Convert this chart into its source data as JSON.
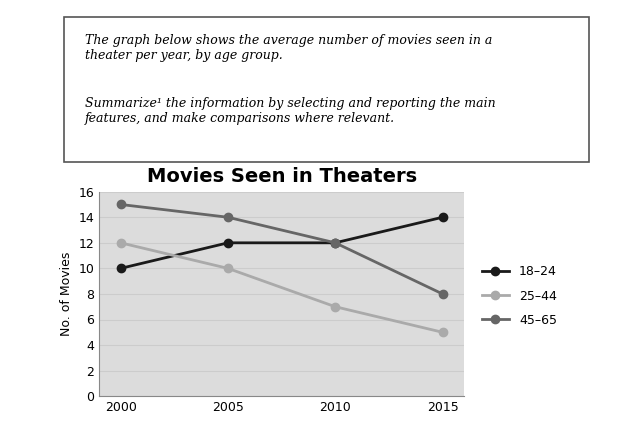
{
  "title": "Movies Seen in Theaters",
  "xlabel": "",
  "ylabel": "No. of Movies",
  "years": [
    2000,
    2005,
    2010,
    2015
  ],
  "series_order": [
    "18-24",
    "25-44",
    "45-65"
  ],
  "series": {
    "18-24": {
      "values": [
        10,
        12,
        12,
        14
      ],
      "color": "#1a1a1a",
      "linewidth": 2.0,
      "marker": "o",
      "markersize": 6,
      "label": "18–24"
    },
    "25-44": {
      "values": [
        12,
        10,
        7,
        5
      ],
      "color": "#aaaaaa",
      "linewidth": 2.0,
      "marker": "o",
      "markersize": 6,
      "label": "25–44"
    },
    "45-65": {
      "values": [
        15,
        14,
        12,
        8
      ],
      "color": "#666666",
      "linewidth": 2.0,
      "marker": "o",
      "markersize": 6,
      "label": "45–65"
    }
  },
  "ylim": [
    0,
    16
  ],
  "yticks": [
    0,
    2,
    4,
    6,
    8,
    10,
    12,
    14,
    16
  ],
  "xticks": [
    2000,
    2005,
    2010,
    2015
  ],
  "grid_color": "#cccccc",
  "background_color": "#dcdcdc",
  "title_fontsize": 14,
  "axis_label_fontsize": 9,
  "tick_fontsize": 9,
  "legend_fontsize": 9,
  "text_line1": "The graph below shows the average number of movies seen in a",
  "text_line2": "theater per year, by age group.",
  "text_line3": "Summarize¹ the information by selecting and reporting the main",
  "text_line4": "features, and make comparisons where relevant.",
  "text_fontsize": 9
}
